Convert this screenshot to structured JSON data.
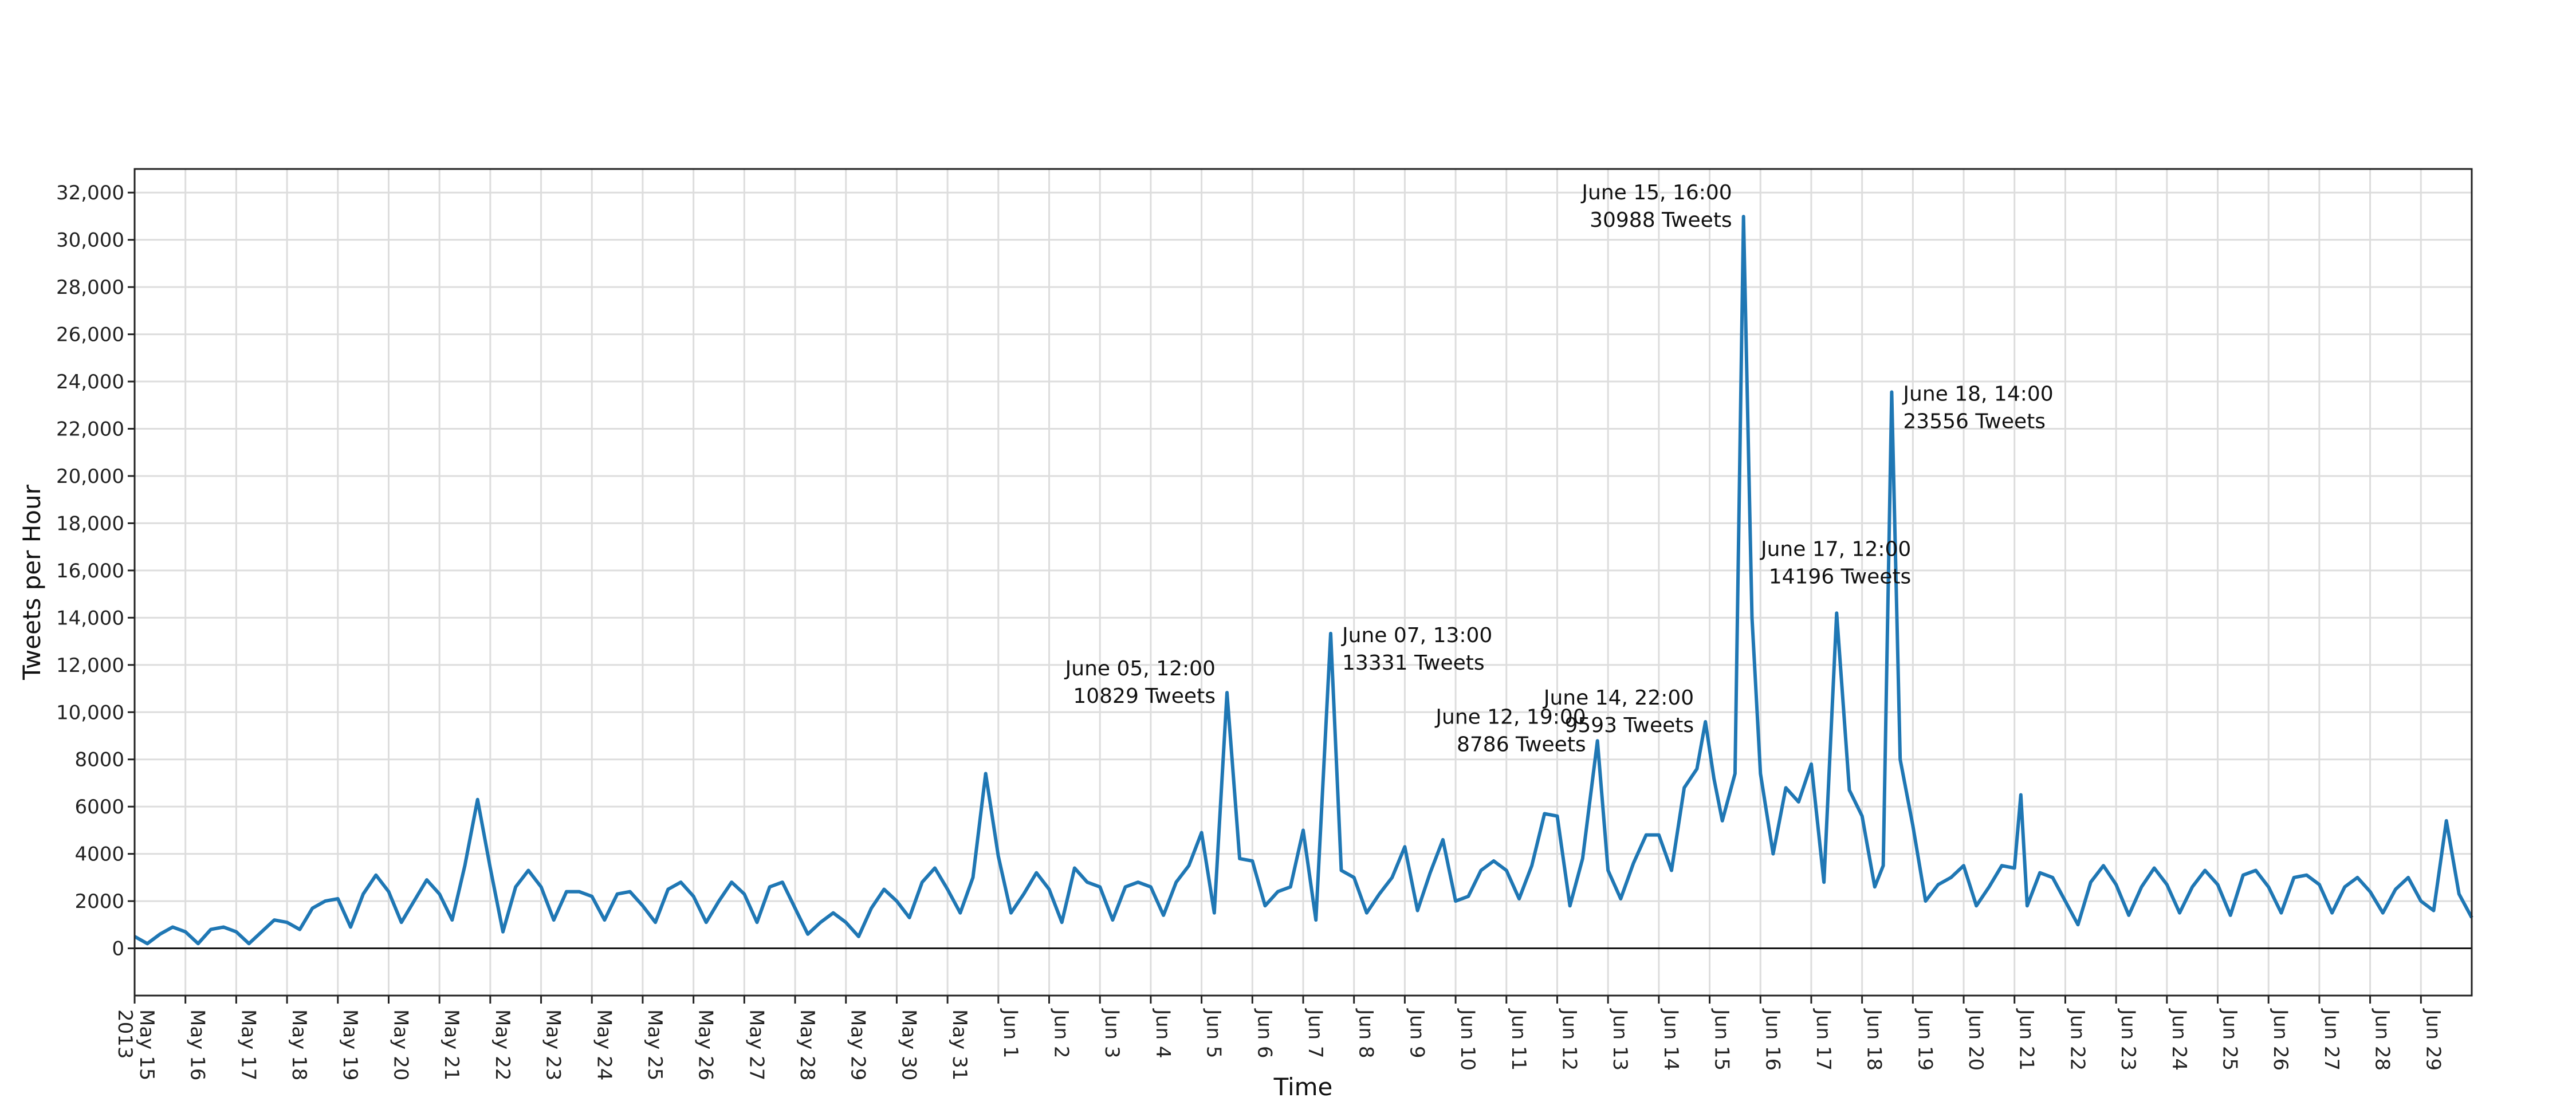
{
  "chart_data": {
    "type": "line",
    "title": "",
    "xlabel": "Time",
    "ylabel": "Tweets per Hour",
    "x_start": "2013-05-15 00:00",
    "x_end": "2013-06-30 00:00",
    "ylim": [
      -2000,
      33000
    ],
    "y_ticks": [
      0,
      2000,
      4000,
      6000,
      8000,
      10000,
      12000,
      14000,
      16000,
      18000,
      20000,
      22000,
      24000,
      26000,
      28000,
      30000,
      32000
    ],
    "y_tick_labels": [
      "0",
      "2000",
      "4000",
      "6000",
      "8000",
      "10,000",
      "12,000",
      "14,000",
      "16,000",
      "18,000",
      "20,000",
      "22,000",
      "24,000",
      "26,000",
      "28,000",
      "30,000",
      "32,000"
    ],
    "x_ticks": [
      {
        "date": "2013-05-15",
        "label": "May 15",
        "sub": "2013"
      },
      {
        "date": "2013-05-16",
        "label": "May 16"
      },
      {
        "date": "2013-05-17",
        "label": "May 17"
      },
      {
        "date": "2013-05-18",
        "label": "May 18"
      },
      {
        "date": "2013-05-19",
        "label": "May 19"
      },
      {
        "date": "2013-05-20",
        "label": "May 20"
      },
      {
        "date": "2013-05-21",
        "label": "May 21"
      },
      {
        "date": "2013-05-22",
        "label": "May 22"
      },
      {
        "date": "2013-05-23",
        "label": "May 23"
      },
      {
        "date": "2013-05-24",
        "label": "May 24"
      },
      {
        "date": "2013-05-25",
        "label": "May 25"
      },
      {
        "date": "2013-05-26",
        "label": "May 26"
      },
      {
        "date": "2013-05-27",
        "label": "May 27"
      },
      {
        "date": "2013-05-28",
        "label": "May 28"
      },
      {
        "date": "2013-05-29",
        "label": "May 29"
      },
      {
        "date": "2013-05-30",
        "label": "May 30"
      },
      {
        "date": "2013-05-31",
        "label": "May 31"
      },
      {
        "date": "2013-06-01",
        "label": "Jun 1"
      },
      {
        "date": "2013-06-02",
        "label": "Jun 2"
      },
      {
        "date": "2013-06-03",
        "label": "Jun 3"
      },
      {
        "date": "2013-06-04",
        "label": "Jun 4"
      },
      {
        "date": "2013-06-05",
        "label": "Jun 5"
      },
      {
        "date": "2013-06-06",
        "label": "Jun 6"
      },
      {
        "date": "2013-06-07",
        "label": "Jun 7"
      },
      {
        "date": "2013-06-08",
        "label": "Jun 8"
      },
      {
        "date": "2013-06-09",
        "label": "Jun 9"
      },
      {
        "date": "2013-06-10",
        "label": "Jun 10"
      },
      {
        "date": "2013-06-11",
        "label": "Jun 11"
      },
      {
        "date": "2013-06-12",
        "label": "Jun 12"
      },
      {
        "date": "2013-06-13",
        "label": "Jun 13"
      },
      {
        "date": "2013-06-14",
        "label": "Jun 14"
      },
      {
        "date": "2013-06-15",
        "label": "Jun 15"
      },
      {
        "date": "2013-06-16",
        "label": "Jun 16"
      },
      {
        "date": "2013-06-17",
        "label": "Jun 17"
      },
      {
        "date": "2013-06-18",
        "label": "Jun 18"
      },
      {
        "date": "2013-06-19",
        "label": "Jun 19"
      },
      {
        "date": "2013-06-20",
        "label": "Jun 20"
      },
      {
        "date": "2013-06-21",
        "label": "Jun 21"
      },
      {
        "date": "2013-06-22",
        "label": "Jun 22"
      },
      {
        "date": "2013-06-23",
        "label": "Jun 23"
      },
      {
        "date": "2013-06-24",
        "label": "Jun 24"
      },
      {
        "date": "2013-06-25",
        "label": "Jun 25"
      },
      {
        "date": "2013-06-26",
        "label": "Jun 26"
      },
      {
        "date": "2013-06-27",
        "label": "Jun 27"
      },
      {
        "date": "2013-06-28",
        "label": "Jun 28"
      },
      {
        "date": "2013-06-29",
        "label": "Jun 29"
      }
    ],
    "grid": true,
    "line_color": "#1f77b4",
    "series": [
      {
        "x": [
          "2013-05-15 00:00",
          "2013-05-15 06:00",
          "2013-05-15 12:00",
          "2013-05-15 18:00",
          "2013-05-16 00:00",
          "2013-05-16 06:00",
          "2013-05-16 12:00",
          "2013-05-16 18:00",
          "2013-05-17 00:00",
          "2013-05-17 06:00",
          "2013-05-17 12:00",
          "2013-05-17 18:00",
          "2013-05-18 00:00",
          "2013-05-18 06:00",
          "2013-05-18 12:00",
          "2013-05-18 18:00",
          "2013-05-19 00:00",
          "2013-05-19 06:00",
          "2013-05-19 12:00",
          "2013-05-19 18:00",
          "2013-05-20 00:00",
          "2013-05-20 06:00",
          "2013-05-20 12:00",
          "2013-05-20 18:00",
          "2013-05-21 00:00",
          "2013-05-21 06:00",
          "2013-05-21 12:00",
          "2013-05-21 15:00",
          "2013-05-21 18:00",
          "2013-05-22 00:00",
          "2013-05-22 06:00",
          "2013-05-22 12:00",
          "2013-05-22 18:00",
          "2013-05-23 00:00",
          "2013-05-23 06:00",
          "2013-05-23 12:00",
          "2013-05-23 18:00",
          "2013-05-24 00:00",
          "2013-05-24 06:00",
          "2013-05-24 12:00",
          "2013-05-24 18:00",
          "2013-05-25 00:00",
          "2013-05-25 06:00",
          "2013-05-25 12:00",
          "2013-05-25 18:00",
          "2013-05-26 00:00",
          "2013-05-26 06:00",
          "2013-05-26 12:00",
          "2013-05-26 18:00",
          "2013-05-27 00:00",
          "2013-05-27 06:00",
          "2013-05-27 12:00",
          "2013-05-27 18:00",
          "2013-05-28 00:00",
          "2013-05-28 06:00",
          "2013-05-28 12:00",
          "2013-05-28 18:00",
          "2013-05-29 00:00",
          "2013-05-29 06:00",
          "2013-05-29 12:00",
          "2013-05-29 18:00",
          "2013-05-30 00:00",
          "2013-05-30 06:00",
          "2013-05-30 12:00",
          "2013-05-30 18:00",
          "2013-05-31 00:00",
          "2013-05-31 06:00",
          "2013-05-31 12:00",
          "2013-05-31 18:00",
          "2013-06-01 00:00",
          "2013-06-01 06:00",
          "2013-06-01 12:00",
          "2013-06-01 18:00",
          "2013-06-02 00:00",
          "2013-06-02 06:00",
          "2013-06-02 12:00",
          "2013-06-02 18:00",
          "2013-06-03 00:00",
          "2013-06-03 06:00",
          "2013-06-03 12:00",
          "2013-06-03 18:00",
          "2013-06-04 00:00",
          "2013-06-04 06:00",
          "2013-06-04 12:00",
          "2013-06-04 18:00",
          "2013-06-05 00:00",
          "2013-06-05 06:00",
          "2013-06-05 12:00",
          "2013-06-05 18:00",
          "2013-06-06 00:00",
          "2013-06-06 06:00",
          "2013-06-06 12:00",
          "2013-06-06 18:00",
          "2013-06-07 00:00",
          "2013-06-07 06:00",
          "2013-06-07 13:00",
          "2013-06-07 18:00",
          "2013-06-08 00:00",
          "2013-06-08 06:00",
          "2013-06-08 12:00",
          "2013-06-08 18:00",
          "2013-06-09 00:00",
          "2013-06-09 06:00",
          "2013-06-09 12:00",
          "2013-06-09 18:00",
          "2013-06-10 00:00",
          "2013-06-10 06:00",
          "2013-06-10 12:00",
          "2013-06-10 18:00",
          "2013-06-11 00:00",
          "2013-06-11 06:00",
          "2013-06-11 12:00",
          "2013-06-11 18:00",
          "2013-06-12 00:00",
          "2013-06-12 06:00",
          "2013-06-12 12:00",
          "2013-06-12 19:00",
          "2013-06-13 00:00",
          "2013-06-13 06:00",
          "2013-06-13 12:00",
          "2013-06-13 18:00",
          "2013-06-14 00:00",
          "2013-06-14 06:00",
          "2013-06-14 12:00",
          "2013-06-14 18:00",
          "2013-06-14 22:00",
          "2013-06-15 02:00",
          "2013-06-15 06:00",
          "2013-06-15 12:00",
          "2013-06-15 16:00",
          "2013-06-15 20:00",
          "2013-06-16 00:00",
          "2013-06-16 06:00",
          "2013-06-16 12:00",
          "2013-06-16 18:00",
          "2013-06-17 00:00",
          "2013-06-17 06:00",
          "2013-06-17 12:00",
          "2013-06-17 18:00",
          "2013-06-18 00:00",
          "2013-06-18 06:00",
          "2013-06-18 10:00",
          "2013-06-18 14:00",
          "2013-06-18 18:00",
          "2013-06-19 00:00",
          "2013-06-19 06:00",
          "2013-06-19 12:00",
          "2013-06-19 18:00",
          "2013-06-20 00:00",
          "2013-06-20 06:00",
          "2013-06-20 12:00",
          "2013-06-20 18:00",
          "2013-06-21 00:00",
          "2013-06-21 03:00",
          "2013-06-21 06:00",
          "2013-06-21 12:00",
          "2013-06-21 18:00",
          "2013-06-22 00:00",
          "2013-06-22 06:00",
          "2013-06-22 12:00",
          "2013-06-22 18:00",
          "2013-06-23 00:00",
          "2013-06-23 06:00",
          "2013-06-23 12:00",
          "2013-06-23 18:00",
          "2013-06-24 00:00",
          "2013-06-24 06:00",
          "2013-06-24 12:00",
          "2013-06-24 18:00",
          "2013-06-25 00:00",
          "2013-06-25 06:00",
          "2013-06-25 12:00",
          "2013-06-25 18:00",
          "2013-06-26 00:00",
          "2013-06-26 06:00",
          "2013-06-26 12:00",
          "2013-06-26 18:00",
          "2013-06-27 00:00",
          "2013-06-27 06:00",
          "2013-06-27 12:00",
          "2013-06-27 18:00",
          "2013-06-28 00:00",
          "2013-06-28 06:00",
          "2013-06-28 12:00",
          "2013-06-28 18:00",
          "2013-06-29 00:00",
          "2013-06-29 06:00",
          "2013-06-29 12:00",
          "2013-06-29 18:00",
          "2013-06-30 00:00"
        ],
        "y": [
          500,
          200,
          600,
          900,
          700,
          200,
          800,
          900,
          700,
          200,
          700,
          1200,
          1100,
          800,
          1700,
          2000,
          2100,
          900,
          2300,
          3100,
          2400,
          1100,
          2000,
          2900,
          2300,
          1200,
          3500,
          4900,
          6300,
          3400,
          700,
          2600,
          3300,
          2600,
          1200,
          2400,
          2400,
          2200,
          1200,
          2300,
          2400,
          1800,
          1100,
          2500,
          2800,
          2200,
          1100,
          2000,
          2800,
          2300,
          1100,
          2600,
          2800,
          1700,
          600,
          1100,
          1500,
          1100,
          500,
          1700,
          2500,
          2000,
          1300,
          2800,
          3400,
          2500,
          1500,
          3000,
          7400,
          3900,
          1500,
          2300,
          3200,
          2500,
          1100,
          3400,
          2800,
          2600,
          1200,
          2600,
          2800,
          2600,
          1400,
          2800,
          3500,
          4900,
          1500,
          10829,
          3800,
          3700,
          1800,
          2400,
          2600,
          5000,
          1200,
          13331,
          3300,
          3000,
          1500,
          2300,
          3000,
          4300,
          1600,
          3200,
          4600,
          2000,
          2200,
          3300,
          3700,
          3300,
          2100,
          3500,
          5700,
          5600,
          1800,
          3800,
          8786,
          3300,
          2100,
          3600,
          4800,
          4800,
          3300,
          6800,
          7600,
          9593,
          7200,
          5400,
          7400,
          30988,
          14000,
          7400,
          4000,
          6800,
          6200,
          7800,
          2800,
          14196,
          6700,
          5600,
          2600,
          3500,
          23556,
          8000,
          5200,
          2000,
          2700,
          3000,
          3500,
          1800,
          2600,
          3500,
          3400,
          6500,
          1800,
          3200,
          3000,
          2000,
          1000,
          2800,
          3500,
          2700,
          1400,
          2600,
          3400,
          2700,
          1500,
          2600,
          3300,
          2700,
          1400,
          3100,
          3300,
          2600,
          1500,
          3000,
          3100,
          2700,
          1500,
          2600,
          3000,
          2400,
          1500,
          2500,
          3000,
          2000,
          1600,
          5400,
          2300,
          1300
        ]
      }
    ],
    "annotations": [
      {
        "x": "2013-06-05 12:00",
        "y": 10829,
        "line1": "June 05, 12:00",
        "line2": "10829 Tweets",
        "side": "left"
      },
      {
        "x": "2013-06-07 13:00",
        "y": 13331,
        "line1": "June 07, 13:00",
        "line2": "13331 Tweets",
        "side": "right"
      },
      {
        "x": "2013-06-12 19:00",
        "y": 8786,
        "line1": "June 12, 19:00",
        "line2": "8786 Tweets",
        "side": "left"
      },
      {
        "x": "2013-06-14 22:00",
        "y": 9593,
        "line1": "June 14, 22:00",
        "line2": " 9593 Tweets",
        "side": "left"
      },
      {
        "x": "2013-06-15 16:00",
        "y": 30988,
        "line1": "June 15, 16:00",
        "line2": "30988 Tweets",
        "side": "left"
      },
      {
        "x": "2013-06-17 12:00",
        "y": 14196,
        "line1": "June 17, 12:00",
        "line2": "14196 Tweets",
        "side": "above-left"
      },
      {
        "x": "2013-06-18 14:00",
        "y": 23556,
        "line1": "June 18, 14:00",
        "line2": "23556 Tweets",
        "side": "right"
      }
    ]
  }
}
